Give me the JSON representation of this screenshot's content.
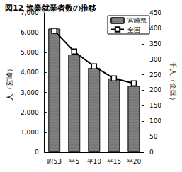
{
  "chart_data": {
    "type": "bar",
    "title": "図12 漁業就業者数の推移",
    "categories": [
      "昭53",
      "平5",
      "平10",
      "平15",
      "平20"
    ],
    "ylabel": "人（宮崎）",
    "y2label": "千人（全国）",
    "ylim": [
      0,
      7000
    ],
    "yticks": [
      0,
      {
        "value": 1000,
        "label": "1,000"
      },
      {
        "value": 2000,
        "label": "2,000"
      },
      {
        "value": 3000,
        "label": "3,000"
      },
      {
        "value": 4000,
        "label": "4,000"
      },
      {
        "value": 5000,
        "label": "5,000"
      },
      {
        "value": 6000,
        "label": "6,000"
      },
      {
        "value": 7000,
        "label": "7,000"
      }
    ],
    "y2lim": [
      0,
      450
    ],
    "y2ticks": [
      0,
      50,
      100,
      150,
      200,
      250,
      300,
      350,
      400,
      450
    ],
    "series": [
      {
        "name": "宮崎県",
        "type": "bar",
        "color": "#808080",
        "values": [
          6200,
          4900,
          4230,
          3700,
          3320
        ]
      },
      {
        "name": "全国",
        "type": "line",
        "axis": "y2",
        "color": "#000000",
        "marker": "square",
        "values": [
          392,
          325,
          277,
          238,
          222
        ]
      }
    ],
    "legend": "upper right",
    "grid": false
  }
}
